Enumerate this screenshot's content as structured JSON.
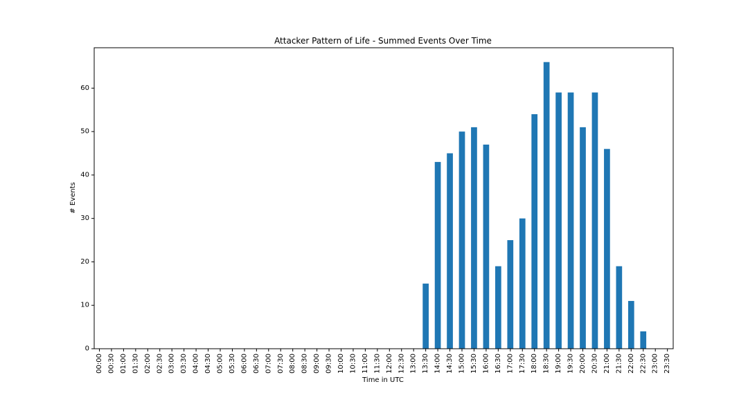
{
  "chart_data": {
    "type": "bar",
    "title": "Attacker Pattern of Life - Summed Events Over Time",
    "xlabel": "Time in UTC",
    "ylabel": "# Events",
    "ylim": [
      0,
      69.3
    ],
    "yticks": [
      0,
      10,
      20,
      30,
      40,
      50,
      60
    ],
    "grid": false,
    "bar_color": "#1f77b4",
    "categories": [
      "00:00",
      "00:30",
      "01:00",
      "01:30",
      "02:00",
      "02:30",
      "03:00",
      "03:30",
      "04:00",
      "04:30",
      "05:00",
      "05:30",
      "06:00",
      "06:30",
      "07:00",
      "07:30",
      "08:00",
      "08:30",
      "09:00",
      "09:30",
      "10:00",
      "10:30",
      "11:00",
      "11:30",
      "12:00",
      "12:30",
      "13:00",
      "13:30",
      "14:00",
      "14:30",
      "15:00",
      "15:30",
      "16:00",
      "16:30",
      "17:00",
      "17:30",
      "18:00",
      "18:30",
      "19:00",
      "19:30",
      "20:00",
      "20:30",
      "21:00",
      "21:30",
      "22:00",
      "22:30",
      "23:00",
      "23:30"
    ],
    "values": [
      0,
      0,
      0,
      0,
      0,
      0,
      0,
      0,
      0,
      0,
      0,
      0,
      0,
      0,
      0,
      0,
      0,
      0,
      0,
      0,
      0,
      0,
      0,
      0,
      0,
      0,
      0,
      15,
      43,
      45,
      50,
      51,
      47,
      19,
      25,
      30,
      54,
      66,
      59,
      59,
      51,
      59,
      46,
      19,
      11,
      4,
      0,
      0
    ]
  }
}
